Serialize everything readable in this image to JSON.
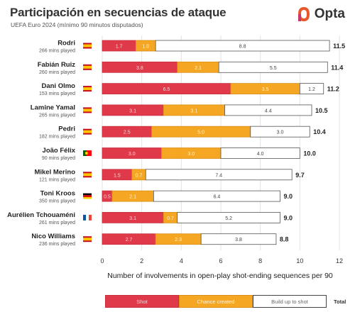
{
  "header": {
    "title": "Participación en secuencias de ataque",
    "subtitle": "UEFA Euro 2024 (mínimo 90 minutos disputados)",
    "logo_text": "Opta"
  },
  "legend": {
    "shot": "Shot",
    "chance": "Chance created",
    "build": "Build up to shot",
    "total": "Total"
  },
  "colors": {
    "shot": "#e0394a",
    "chance": "#f5a623",
    "build": "#ffffff",
    "logo_accent": "#e8582c"
  },
  "chart_data": {
    "type": "bar",
    "orientation": "horizontal",
    "stacked": true,
    "xlabel": "Number of involvements in open-play shot-ending sequences per 90",
    "xlim": [
      0,
      12
    ],
    "xticks": [
      0,
      2,
      4,
      6,
      8,
      10,
      12
    ],
    "players": [
      {
        "name": "Rodri",
        "mins": "266 mins played",
        "flag": "spain",
        "shot": 1.7,
        "chance": 1.0,
        "build": 8.8,
        "total": 11.5
      },
      {
        "name": "Fabián Ruiz",
        "mins": "260 mins played",
        "flag": "spain",
        "shot": 3.8,
        "chance": 2.1,
        "build": 5.5,
        "total": 11.4
      },
      {
        "name": "Dani Olmo",
        "mins": "153 mins played",
        "flag": "spain",
        "shot": 6.5,
        "chance": 3.5,
        "build": 1.2,
        "total": 11.2
      },
      {
        "name": "Lamine Yamal",
        "mins": "265 mins played",
        "flag": "spain",
        "shot": 3.1,
        "chance": 3.1,
        "build": 4.4,
        "total": 10.5
      },
      {
        "name": "Pedri",
        "mins": "182 mins played",
        "flag": "spain",
        "shot": 2.5,
        "chance": 5.0,
        "build": 3.0,
        "total": 10.4
      },
      {
        "name": "João Félix",
        "mins": "90 mins played",
        "flag": "portugal",
        "shot": 3.0,
        "chance": 3.0,
        "build": 4.0,
        "total": 10.0
      },
      {
        "name": "Mikel Merino",
        "mins": "121 mins played",
        "flag": "spain",
        "shot": 1.5,
        "chance": 0.7,
        "build": 7.4,
        "total": 9.7
      },
      {
        "name": "Toni Kroos",
        "mins": "350 mins played",
        "flag": "germany",
        "shot": 0.5,
        "chance": 2.1,
        "build": 6.4,
        "total": 9.0
      },
      {
        "name": "Aurélien Tchouaméni",
        "mins": "261 mins played",
        "flag": "france",
        "shot": 3.1,
        "chance": 0.7,
        "build": 5.2,
        "total": 9.0
      },
      {
        "name": "Nico Williams",
        "mins": "236 mins played",
        "flag": "spain",
        "shot": 2.7,
        "chance": 2.3,
        "build": 3.8,
        "total": 8.8
      }
    ]
  }
}
